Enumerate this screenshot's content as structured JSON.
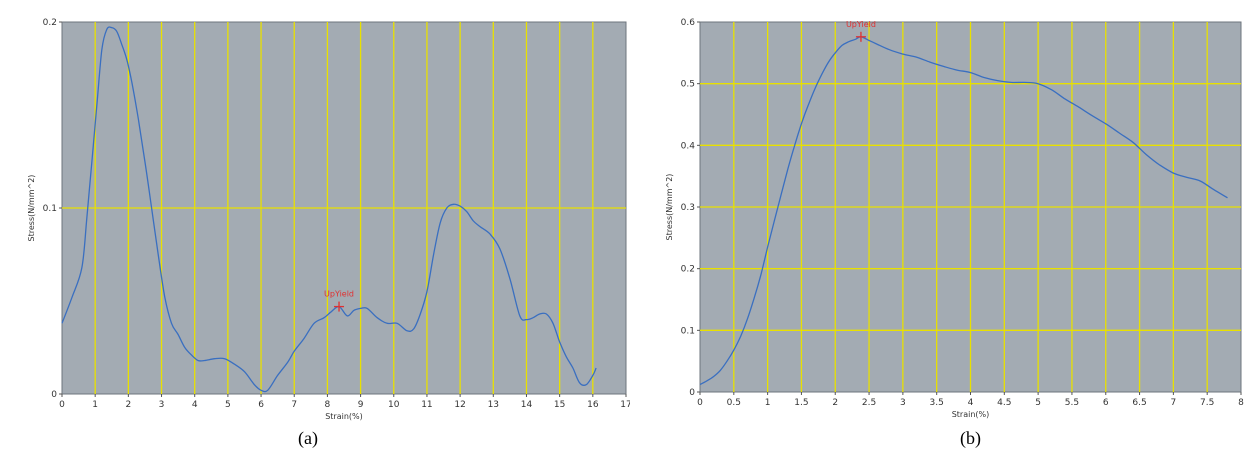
{
  "chart_data": [
    {
      "type": "line",
      "panel_label": "(a)",
      "xlabel": "Strain(%)",
      "ylabel": "Stress(N/mm^2)",
      "xlim": [
        0,
        17
      ],
      "ylim": [
        0,
        0.2
      ],
      "xticks": [
        "0",
        "1",
        "2",
        "3",
        "4",
        "5",
        "6",
        "7",
        "8",
        "9",
        "10",
        "11",
        "12",
        "13",
        "14",
        "15",
        "16",
        "17"
      ],
      "yticks": [
        "0",
        "0.1",
        "0.2"
      ],
      "grid": true,
      "colors": {
        "plot_bg": "#a3abb3",
        "grid": "#e8e000",
        "line": "#3a6fc0",
        "marker": "#e03030"
      },
      "marker": {
        "label": "UpYield",
        "x": 8.35,
        "y": 0.047
      },
      "series": [
        {
          "x": [
            0,
            0.3,
            0.6,
            0.75,
            0.9,
            1.05,
            1.2,
            1.35,
            1.5,
            1.65,
            1.8,
            1.95,
            2.1,
            2.3,
            2.5,
            2.7,
            2.9,
            3.1,
            3.3,
            3.5,
            3.7,
            3.9,
            4.1,
            4.3,
            4.6,
            4.9,
            5.2,
            5.5,
            5.8,
            6.0,
            6.2,
            6.5,
            6.8,
            7.0,
            7.3,
            7.6,
            7.9,
            8.1,
            8.35,
            8.6,
            8.8,
            9.0,
            9.2,
            9.5,
            9.8,
            10.1,
            10.4,
            10.6,
            10.8,
            11.0,
            11.2,
            11.4,
            11.6,
            11.8,
            12.0,
            12.2,
            12.4,
            12.6,
            12.9,
            13.2,
            13.5,
            13.8,
            14.0,
            14.2,
            14.4,
            14.6,
            14.8,
            15.0,
            15.2,
            15.4,
            15.6,
            15.8,
            16.0,
            16.1
          ],
          "y": [
            0.038,
            0.052,
            0.068,
            0.095,
            0.125,
            0.155,
            0.185,
            0.196,
            0.197,
            0.195,
            0.188,
            0.18,
            0.168,
            0.148,
            0.125,
            0.1,
            0.075,
            0.052,
            0.038,
            0.032,
            0.025,
            0.021,
            0.018,
            0.018,
            0.019,
            0.019,
            0.016,
            0.012,
            0.005,
            0.002,
            0.002,
            0.01,
            0.017,
            0.023,
            0.03,
            0.038,
            0.041,
            0.044,
            0.047,
            0.042,
            0.045,
            0.046,
            0.046,
            0.041,
            0.038,
            0.038,
            0.034,
            0.035,
            0.043,
            0.055,
            0.075,
            0.092,
            0.1,
            0.102,
            0.101,
            0.098,
            0.093,
            0.09,
            0.086,
            0.078,
            0.062,
            0.042,
            0.04,
            0.041,
            0.043,
            0.043,
            0.038,
            0.028,
            0.02,
            0.014,
            0.006,
            0.005,
            0.01,
            0.014
          ]
        }
      ]
    },
    {
      "type": "line",
      "panel_label": "(b)",
      "xlabel": "Strain(%)",
      "ylabel": "Stress(N/mm^2)",
      "xlim": [
        0,
        8
      ],
      "ylim": [
        0,
        0.6
      ],
      "xticks": [
        "0",
        "0.5",
        "1",
        "1.5",
        "2",
        "2.5",
        "3",
        "3.5",
        "4",
        "4.5",
        "5",
        "5.5",
        "6",
        "6.5",
        "7",
        "7.5",
        "8"
      ],
      "yticks": [
        "0",
        "0.1",
        "0.2",
        "0.3",
        "0.4",
        "0.5",
        "0.6"
      ],
      "grid": true,
      "colors": {
        "plot_bg": "#a3abb3",
        "grid": "#e8e000",
        "line": "#3a6fc0",
        "marker": "#e03030"
      },
      "marker": {
        "label": "UpYield",
        "x": 2.38,
        "y": 0.576
      },
      "series": [
        {
          "x": [
            0,
            0.1,
            0.2,
            0.3,
            0.4,
            0.5,
            0.6,
            0.7,
            0.8,
            0.9,
            1.0,
            1.1,
            1.2,
            1.3,
            1.4,
            1.5,
            1.6,
            1.7,
            1.8,
            1.9,
            2.0,
            2.1,
            2.2,
            2.3,
            2.38,
            2.5,
            2.6,
            2.8,
            3.0,
            3.2,
            3.4,
            3.6,
            3.8,
            4.0,
            4.2,
            4.4,
            4.6,
            4.8,
            5.0,
            5.2,
            5.4,
            5.6,
            5.8,
            6.0,
            6.2,
            6.4,
            6.6,
            6.8,
            7.0,
            7.2,
            7.4,
            7.6,
            7.8
          ],
          "y": [
            0.012,
            0.018,
            0.025,
            0.035,
            0.05,
            0.068,
            0.09,
            0.118,
            0.152,
            0.19,
            0.235,
            0.278,
            0.32,
            0.362,
            0.4,
            0.435,
            0.465,
            0.492,
            0.515,
            0.535,
            0.55,
            0.562,
            0.568,
            0.572,
            0.576,
            0.57,
            0.565,
            0.555,
            0.548,
            0.543,
            0.535,
            0.528,
            0.522,
            0.518,
            0.51,
            0.505,
            0.502,
            0.502,
            0.5,
            0.49,
            0.475,
            0.462,
            0.448,
            0.435,
            0.42,
            0.405,
            0.385,
            0.368,
            0.355,
            0.348,
            0.342,
            0.328,
            0.315
          ]
        }
      ]
    }
  ]
}
